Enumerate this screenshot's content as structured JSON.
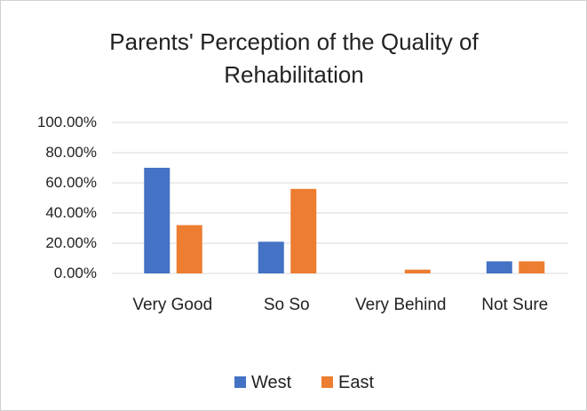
{
  "chart_data": {
    "type": "bar",
    "title": "Parents' Perception of the Quality of Rehabilitation",
    "categories": [
      "Very Good",
      "So So",
      "Very Behind",
      "Not Sure"
    ],
    "series": [
      {
        "name": "West",
        "color": "#4472c4",
        "values": [
          70,
          21,
          0,
          8
        ]
      },
      {
        "name": "East",
        "color": "#ed7d31",
        "values": [
          32,
          56,
          2.5,
          8
        ]
      }
    ],
    "ylim": [
      0,
      100
    ],
    "yticks": [
      {
        "value": 0,
        "label": "0.00%"
      },
      {
        "value": 20,
        "label": "20.00%"
      },
      {
        "value": 40,
        "label": "40.00%"
      },
      {
        "value": 60,
        "label": "60.00%"
      },
      {
        "value": 80,
        "label": "80.00%"
      },
      {
        "value": 100,
        "label": "100.00%"
      }
    ],
    "grid": true,
    "legend": "bottom"
  }
}
